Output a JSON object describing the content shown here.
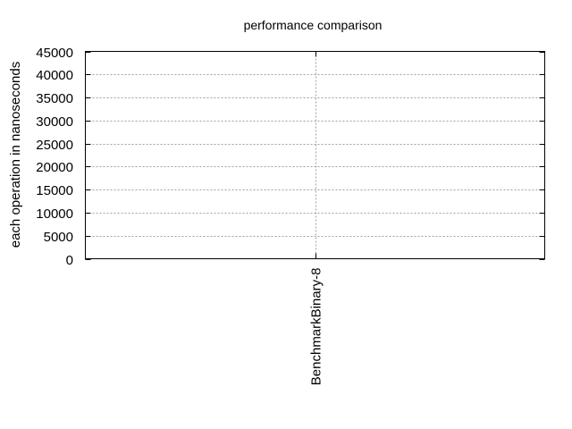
{
  "chart_data": {
    "type": "bar",
    "title": "performance comparison",
    "xlabel": "",
    "ylabel": "each operation in nanoseconds",
    "categories": [
      "BenchmarkBinary-8"
    ],
    "series": [
      {
        "values": [
          0
        ]
      }
    ],
    "ylim": [
      0,
      45000
    ],
    "yticks": [
      0,
      5000,
      10000,
      15000,
      20000,
      25000,
      30000,
      35000,
      40000,
      45000
    ],
    "grid": true,
    "legend": "none"
  }
}
